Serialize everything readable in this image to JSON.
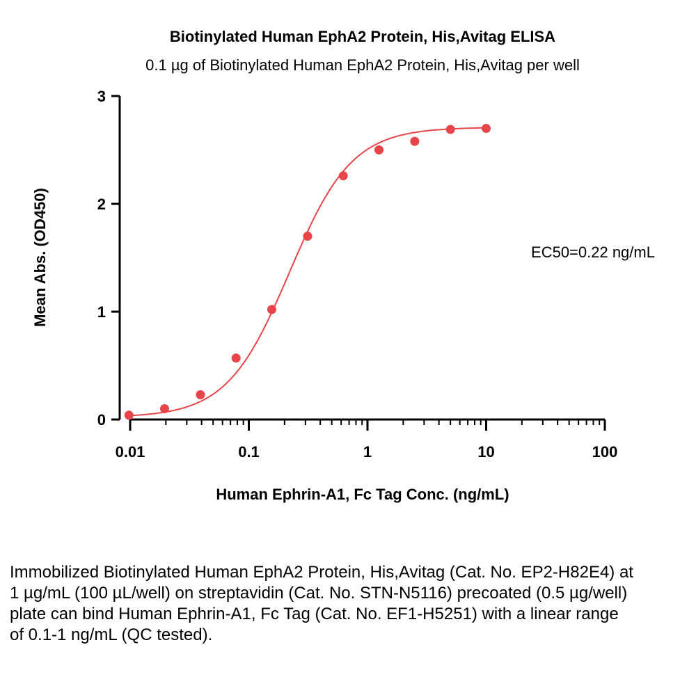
{
  "chart_data": {
    "type": "scatter",
    "title": "Biotinylated Human EphA2 Protein, His,Avitag ELISA",
    "subtitle": "0.1 µg of Biotinylated Human EphA2 Protein, His,Avitag per well",
    "xlabel": "Human Ephrin-A1, Fc Tag Conc. (ng/mL)",
    "ylabel": "Mean Abs. (OD450)",
    "xscale": "log",
    "xlim": [
      0.01,
      100
    ],
    "ylim": [
      0,
      3
    ],
    "xticks": [
      0.01,
      0.1,
      1,
      10,
      100
    ],
    "xtick_labels": [
      "0.01",
      "0.1",
      "1",
      "10",
      "100"
    ],
    "yticks": [
      0,
      1,
      2,
      3
    ],
    "ytick_labels": [
      "0",
      "1",
      "2",
      "3"
    ],
    "grid": false,
    "series": [
      {
        "x": [
          0.00977,
          0.0195,
          0.0391,
          0.0781,
          0.156,
          0.313,
          0.625,
          1.25,
          2.5,
          5,
          10
        ],
        "y": [
          0.04,
          0.1,
          0.23,
          0.57,
          1.02,
          1.7,
          2.26,
          2.5,
          2.58,
          2.69,
          2.7
        ],
        "color": "#e8454b",
        "fit": {
          "model": "4PL",
          "bottom": 0.02,
          "top": 2.71,
          "ec50": 0.22,
          "hill": 1.65
        }
      }
    ],
    "annotation": "EC50=0.22 ng/mL"
  },
  "caption": "Immobilized Biotinylated Human EphA2 Protein, His,Avitag (Cat. No. EP2-H82E4) at 1 µg/mL (100 µL/well) on streptavidin (Cat. No. STN-N5116) precoated (0.5 µg/well) plate can bind Human Ephrin-A1, Fc Tag (Cat. No. EF1-H5251) with a linear range of 0.1-1 ng/mL (QC tested)."
}
